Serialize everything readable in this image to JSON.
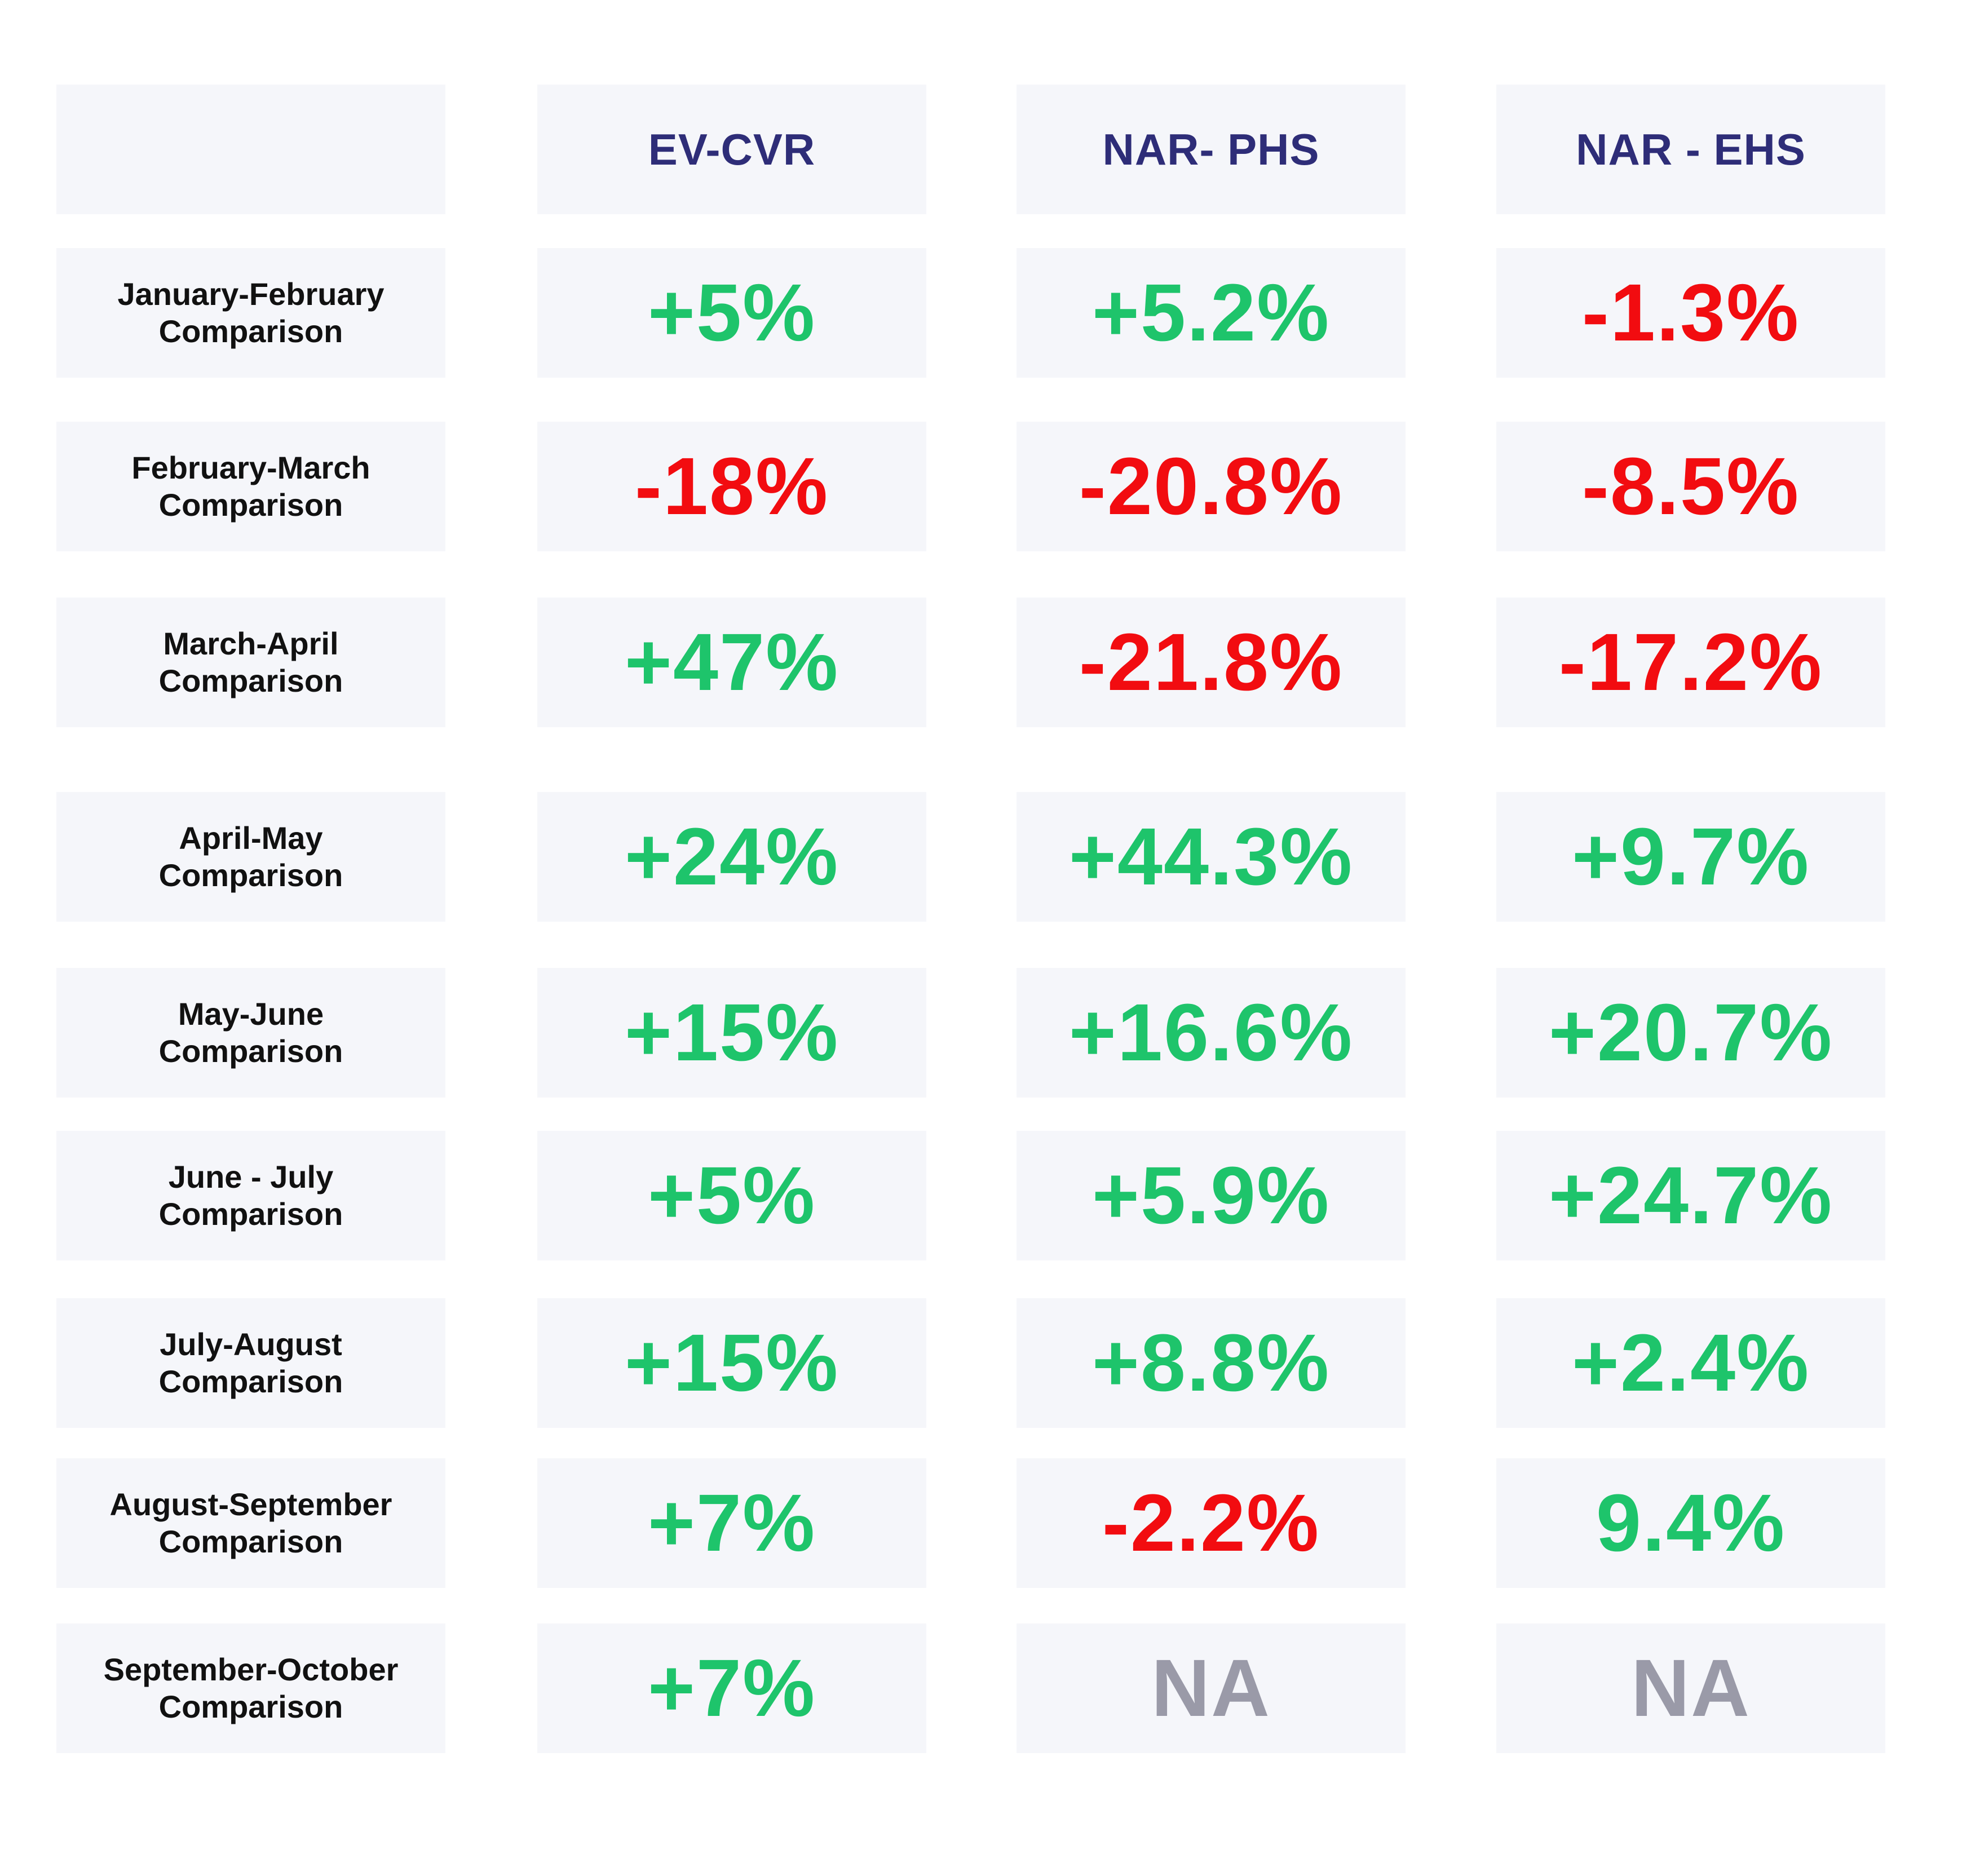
{
  "chart_data": {
    "type": "table",
    "columns": [
      "",
      "EV-CVR",
      "NAR- PHS",
      "NAR - EHS"
    ],
    "rows": [
      {
        "label": "January-February\nComparison",
        "values": [
          "+5%",
          "+5.2%",
          "-1.3%"
        ]
      },
      {
        "label": "February-March\nComparison",
        "values": [
          "-18%",
          "-20.8%",
          "-8.5%"
        ]
      },
      {
        "label": "March-April\nComparison",
        "values": [
          "+47%",
          "-21.8%",
          "-17.2%"
        ]
      },
      {
        "label": "April-May\nComparison",
        "values": [
          "+24%",
          "+44.3%",
          "+9.7%"
        ]
      },
      {
        "label": "May-June\nComparison",
        "values": [
          "+15%",
          "+16.6%",
          "+20.7%"
        ]
      },
      {
        "label": "June - July\nComparison",
        "values": [
          "+5%",
          "+5.9%",
          "+24.7%"
        ]
      },
      {
        "label": "July-August\nComparison",
        "values": [
          "+15%",
          "+8.8%",
          "+2.4%"
        ]
      },
      {
        "label": "August-September\nComparison",
        "values": [
          "+7%",
          "-2.2%",
          "9.4%"
        ]
      },
      {
        "label": "September-October\nComparison",
        "values": [
          "+7%",
          "NA",
          "NA"
        ]
      }
    ],
    "colors": {
      "positive": "#1ec46b",
      "negative": "#f20c10",
      "not_available": "#9a9aa8",
      "header_text": "#2e2d78",
      "cell_background": "#f5f6fa"
    }
  }
}
